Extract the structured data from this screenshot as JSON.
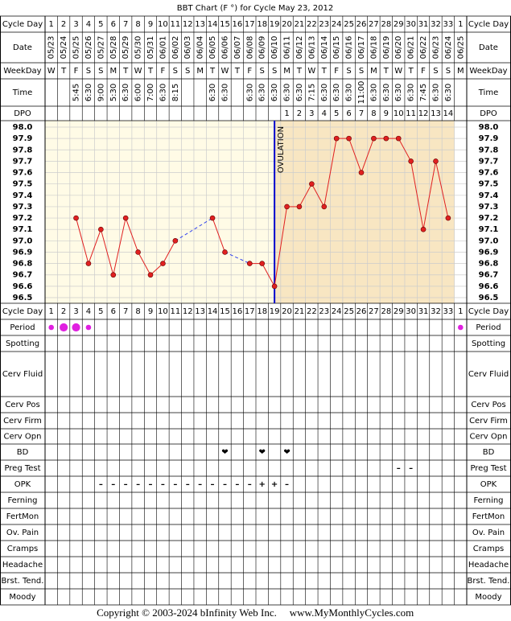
{
  "chart_data": {
    "type": "line",
    "title": "BBT Chart (F °) for Cycle May 23, 2012",
    "row_labels": {
      "cycle_day": "Cycle Day",
      "date": "Date",
      "weekday": "WeekDay",
      "time": "Time",
      "dpo": "DPO"
    },
    "cycle_days": [
      1,
      2,
      3,
      4,
      5,
      6,
      7,
      8,
      9,
      10,
      11,
      12,
      13,
      14,
      15,
      16,
      17,
      18,
      19,
      20,
      21,
      22,
      23,
      24,
      25,
      26,
      27,
      28,
      29,
      30,
      31,
      32,
      33,
      1
    ],
    "dates": [
      "05/23",
      "05/24",
      "05/25",
      "05/26",
      "05/27",
      "05/28",
      "05/29",
      "05/30",
      "05/31",
      "06/01",
      "06/02",
      "06/03",
      "06/04",
      "06/05",
      "06/06",
      "06/07",
      "06/08",
      "06/09",
      "06/10",
      "06/11",
      "06/12",
      "06/13",
      "06/14",
      "06/15",
      "06/16",
      "06/17",
      "06/18",
      "06/19",
      "06/20",
      "06/21",
      "06/22",
      "06/23",
      "06/24",
      "06/25"
    ],
    "weekdays": [
      "W",
      "T",
      "F",
      "S",
      "S",
      "M",
      "T",
      "W",
      "T",
      "F",
      "S",
      "S",
      "M",
      "T",
      "W",
      "T",
      "F",
      "S",
      "S",
      "M",
      "T",
      "W",
      "T",
      "F",
      "S",
      "S",
      "M",
      "T",
      "W",
      "T",
      "F",
      "S",
      "S",
      "M"
    ],
    "times": [
      null,
      null,
      "5:45",
      "6:30",
      "9:00",
      "5:30",
      "6:30",
      "6:00",
      "7:00",
      "6:30",
      "8:15",
      null,
      null,
      "6:30",
      "6:30",
      null,
      "6:30",
      "6:30",
      "6:30",
      "6:30",
      "6:30",
      "7:15",
      "6:30",
      "6:30",
      "6:30",
      "11:00",
      "6:30",
      "6:30",
      "6:30",
      "6:30",
      "7:45",
      "6:30",
      "6:30",
      null
    ],
    "dpo": [
      null,
      null,
      null,
      null,
      null,
      null,
      null,
      null,
      null,
      null,
      null,
      null,
      null,
      null,
      null,
      null,
      null,
      null,
      null,
      1,
      2,
      3,
      4,
      5,
      6,
      7,
      8,
      9,
      10,
      11,
      12,
      13,
      14,
      null
    ],
    "values": [
      null,
      null,
      97.2,
      96.8,
      97.1,
      96.7,
      97.2,
      96.9,
      96.7,
      96.8,
      97.0,
      null,
      null,
      97.2,
      96.9,
      null,
      96.8,
      96.8,
      96.6,
      97.3,
      97.3,
      97.5,
      97.3,
      97.9,
      97.9,
      97.6,
      97.9,
      97.9,
      97.9,
      97.7,
      97.1,
      97.7,
      97.2,
      null
    ],
    "color": "#e02020",
    "ylim": [
      96.5,
      98.0
    ],
    "yticks": [
      {
        "value": 98.0,
        "label": "98.0"
      },
      97.9,
      97.8,
      97.7,
      97.6,
      97.5,
      97.4,
      97.3,
      97.2,
      97.1,
      {
        "value": 97.0,
        "label": "97.0"
      },
      96.9,
      96.8,
      96.7,
      96.6,
      96.5
    ],
    "grid": true,
    "annotation": {
      "text": "OVULATION",
      "day": 19,
      "color": "#0000cc"
    },
    "symptom_rows": [
      {
        "label": "Period",
        "values": [
          1,
          2,
          2,
          1,
          null,
          null,
          null,
          null,
          null,
          null,
          null,
          null,
          null,
          null,
          null,
          null,
          null,
          null,
          null,
          null,
          null,
          null,
          null,
          null,
          null,
          null,
          null,
          null,
          null,
          null,
          null,
          null,
          null,
          1
        ],
        "color": "#e020e0"
      },
      {
        "label": "Spotting"
      },
      {
        "label": "Cerv Fluid"
      },
      {
        "label": "Cerv Pos"
      },
      {
        "label": "Cerv Firm"
      },
      {
        "label": "Cerv Opn"
      },
      {
        "label": "BD",
        "symbols": [
          null,
          null,
          null,
          null,
          null,
          null,
          null,
          null,
          null,
          null,
          null,
          null,
          null,
          null,
          "❤",
          null,
          null,
          "❤",
          null,
          "❤",
          null,
          null,
          null,
          null,
          null,
          null,
          null,
          null,
          null,
          null,
          null,
          null,
          null,
          null
        ],
        "color": "#e0307a"
      },
      {
        "label": "Preg Test",
        "symbols": [
          null,
          null,
          null,
          null,
          null,
          null,
          null,
          null,
          null,
          null,
          null,
          null,
          null,
          null,
          null,
          null,
          null,
          null,
          null,
          null,
          null,
          null,
          null,
          null,
          null,
          null,
          null,
          null,
          "–",
          "–",
          null,
          null,
          null,
          null
        ],
        "color": "#8a3fb0"
      },
      {
        "label": "OPK",
        "symbols": [
          null,
          null,
          null,
          null,
          "–",
          "–",
          "–",
          "–",
          "–",
          "–",
          "–",
          "–",
          "–",
          "–",
          "–",
          "–",
          "–",
          "+",
          "+",
          "–",
          null,
          null,
          null,
          null,
          null,
          null,
          null,
          null,
          null,
          null,
          null,
          null,
          null,
          null
        ],
        "color": "#8a3fb0"
      },
      {
        "label": "Ferning"
      },
      {
        "label": "FertMon"
      },
      {
        "label": "Ov. Pain"
      },
      {
        "label": "Cramps"
      },
      {
        "label": "Headache"
      },
      {
        "label": "Brst. Tend."
      },
      {
        "label": "Moody"
      }
    ],
    "footer": [
      "Copyright © 2003-2024 bInfinity Web Inc.",
      "www.MyMonthlyCycles.com"
    ]
  }
}
